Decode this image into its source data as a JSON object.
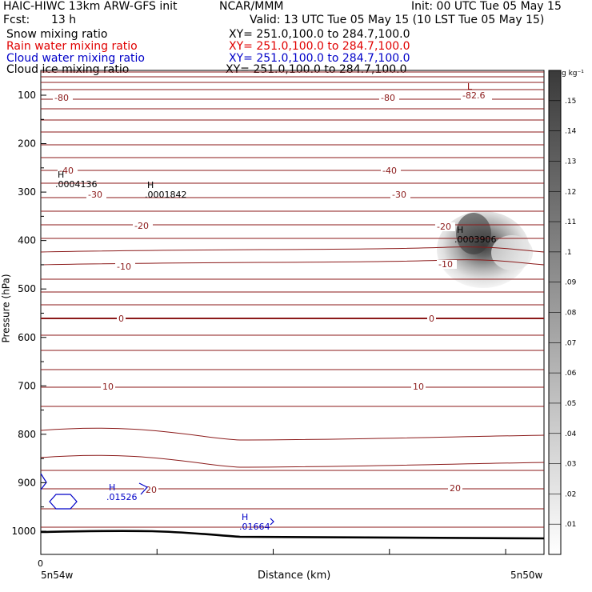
{
  "header": {
    "model": "HAIC-HIWC 13km ARW-GFS init",
    "org": "NCAR/MMM",
    "init": "Init: 00 UTC Tue 05 May 15",
    "fcst_label": "Fcst:",
    "fcst_value": "13 h",
    "valid": "Valid: 13 UTC Tue 05 May 15 (10 LST Tue 05 May 15)"
  },
  "fields": [
    {
      "name": "Snow mixing ratio",
      "xy": "XY= 251.0,100.0 to 284.7,100.0",
      "color": "#000000"
    },
    {
      "name": "Rain water mixing ratio",
      "xy": "XY= 251.0,100.0 to 284.7,100.0",
      "color": "#e00000"
    },
    {
      "name": "Cloud water mixing ratio",
      "xy": "XY= 251.0,100.0 to 284.7,100.0",
      "color": "#0000c8"
    },
    {
      "name": "Cloud ice mixing ratio",
      "xy": "XY= 251.0,100.0 to 284.7,100.0",
      "color": "#000000"
    }
  ],
  "chart_data": {
    "type": "heatmap",
    "xlabel": "Distance (km)",
    "ylabel": "Pressure (hPa)",
    "x_start_label": "5n54w",
    "x_end_label": "5n50w",
    "x_zero_label": "0",
    "yticks": [
      100,
      200,
      300,
      400,
      500,
      600,
      700,
      800,
      900,
      1000
    ],
    "ylim": [
      1050,
      50
    ],
    "colorbar": {
      "unit": "g kg⁻¹",
      "ticks": [
        ".01",
        ".02",
        ".03",
        ".04",
        ".05",
        ".06",
        ".07",
        ".08",
        ".09",
        ".1",
        ".11",
        ".12",
        ".13",
        ".14",
        ".15"
      ],
      "min": 0,
      "max": 0.16
    },
    "isotherm_labels": [
      "-82.6",
      "-80",
      "-80",
      "-40",
      "-40",
      "-30",
      "-30",
      "-20",
      "-20",
      "-10",
      "-10",
      "0",
      "0",
      "10",
      "10",
      "20",
      "20"
    ],
    "extrema": [
      {
        "letter": "L",
        "value": "-82.6",
        "color": "#8b0000"
      },
      {
        "letter": "H",
        "value": ".0004136",
        "color": "#000000"
      },
      {
        "letter": "H",
        "value": ".0001842",
        "color": "#000000"
      },
      {
        "letter": "H",
        "value": ".0003906",
        "color": "#000000"
      },
      {
        "letter": "H",
        "value": ".01526",
        "color": "#0000c8"
      },
      {
        "letter": "H",
        "value": ".01664",
        "color": "#0000c8"
      }
    ],
    "colors": {
      "isotherm": "#8b1a1a",
      "cloud_water": "#0000c8",
      "ice_shading_max": "#2a2a2a",
      "terrain": "#000000"
    }
  }
}
